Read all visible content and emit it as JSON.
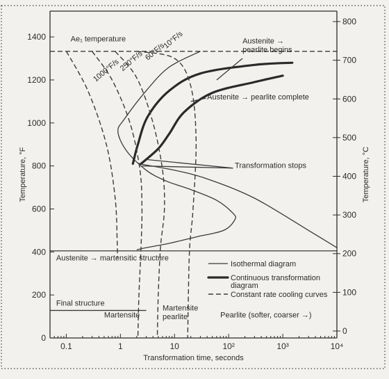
{
  "chart_data": {
    "type": "line",
    "xlabel": "Transformation time, seconds",
    "ylabel_left": "Temperature, °F",
    "ylabel_right": "Temperature, °C",
    "x_scale": "log",
    "xlim": [
      0.05,
      10000
    ],
    "ylim_left": [
      0,
      1520
    ],
    "ylim_right": [
      -18,
      827
    ],
    "x_ticks": [
      {
        "value": 0.1,
        "label": "0.1"
      },
      {
        "value": 1,
        "label": "1"
      },
      {
        "value": 10,
        "label": "10"
      },
      {
        "value": 100,
        "label": "10²"
      },
      {
        "value": 1000,
        "label": "10³"
      },
      {
        "value": 10000,
        "label": "10⁴"
      }
    ],
    "y_ticks_left": [
      0,
      200,
      400,
      600,
      800,
      1000,
      1200,
      1400
    ],
    "y_ticks_right": [
      0,
      100,
      200,
      300,
      400,
      500,
      600,
      700,
      800
    ],
    "reference_lines": [
      {
        "label": "Ae₁ temperature",
        "y": 1333
      },
      {
        "label": "Austenite → martensitic structure",
        "y": 405
      }
    ],
    "series": [
      {
        "name": "Isothermal diagram",
        "style": "thin",
        "points": [
          [
            30,
            1333
          ],
          [
            8,
            1260
          ],
          [
            3,
            1150
          ],
          [
            1.2,
            1020
          ],
          [
            0.9,
            960
          ],
          [
            1.3,
            870
          ],
          [
            3,
            780
          ],
          [
            7,
            730
          ],
          [
            20,
            690
          ],
          [
            60,
            640
          ],
          [
            120,
            580
          ],
          [
            130,
            550
          ],
          [
            80,
            500
          ],
          [
            25,
            470
          ],
          [
            8,
            440
          ],
          [
            3,
            420
          ],
          [
            2,
            410
          ]
        ]
      },
      {
        "name": "Isothermal diagram",
        "style": "thin",
        "points": [
          [
            2.2,
            810
          ],
          [
            10,
            780
          ],
          [
            40,
            740
          ],
          [
            300,
            650
          ],
          [
            3000,
            500
          ],
          [
            10000,
            420
          ]
        ]
      },
      {
        "name": "Continuous transformation diagram",
        "style": "thick",
        "points": [
          [
            1.7,
            810
          ],
          [
            2.1,
            900
          ],
          [
            3.2,
            1030
          ],
          [
            8,
            1150
          ],
          [
            30,
            1230
          ],
          [
            300,
            1270
          ],
          [
            1500,
            1280
          ]
        ]
      },
      {
        "name": "Continuous transformation diagram",
        "style": "thick",
        "points": [
          [
            2.4,
            810
          ],
          [
            5,
            880
          ],
          [
            8,
            950
          ],
          [
            15,
            1050
          ],
          [
            50,
            1140
          ],
          [
            300,
            1190
          ],
          [
            1000,
            1220
          ]
        ]
      },
      {
        "name": "Constant rate cooling curves",
        "style": "dashed",
        "label": "10°F/s",
        "points": [
          [
            2,
            1333
          ],
          [
            10,
            1300
          ],
          [
            20,
            1170
          ],
          [
            25,
            920
          ],
          [
            22,
            600
          ],
          [
            19,
            420
          ],
          [
            18,
            200
          ],
          [
            17.5,
            0
          ]
        ]
      },
      {
        "name": "Constant rate cooling curves",
        "style": "dashed",
        "label": "60°F/s",
        "points": [
          [
            0.8,
            1333
          ],
          [
            2,
            1210
          ],
          [
            4,
            1000
          ],
          [
            6,
            780
          ],
          [
            6.5,
            600
          ],
          [
            5.5,
            420
          ],
          [
            5,
            200
          ],
          [
            4.8,
            0
          ]
        ]
      },
      {
        "name": "Constant rate cooling curves",
        "style": "dashed",
        "label": "250°F/s",
        "points": [
          [
            0.3,
            1333
          ],
          [
            0.7,
            1200
          ],
          [
            1.5,
            1000
          ],
          [
            2.3,
            780
          ],
          [
            2.5,
            600
          ],
          [
            2.4,
            420
          ],
          [
            2.2,
            200
          ],
          [
            2.1,
            0
          ]
        ]
      },
      {
        "name": "Constant rate cooling curves",
        "style": "dashed",
        "label": "1000°F/s",
        "points": [
          [
            0.1,
            1333
          ],
          [
            0.25,
            1150
          ],
          [
            0.55,
            900
          ],
          [
            0.8,
            650
          ],
          [
            0.87,
            450
          ],
          [
            0.88,
            380
          ],
          [
            0.88,
            380
          ]
        ]
      }
    ],
    "annotations": [
      {
        "text": "Ae₁ temperature",
        "x": 0.12,
        "y": 1380
      },
      {
        "text": "10°F/s",
        "x": 7,
        "y": 1345
      },
      {
        "text": "60°F/s",
        "x": 3.2,
        "y": 1290
      },
      {
        "text": "250°F/s",
        "x": 1.1,
        "y": 1240
      },
      {
        "text": "1000°F/s",
        "x": 0.35,
        "y": 1190
      },
      {
        "text": "Austenite →",
        "x": 180,
        "y": 1370
      },
      {
        "text": "pearlite begins",
        "x": 180,
        "y": 1330
      },
      {
        "text": "Austenite → pearlite complete",
        "x": 40,
        "y": 1110
      },
      {
        "text": "Transformation stops",
        "x": 130,
        "y": 790
      },
      {
        "text": "Austenite → martensitic structure",
        "x": 0.065,
        "y": 360
      },
      {
        "text": "Final structure",
        "x": 0.065,
        "y": 150
      },
      {
        "text": "Martensite",
        "x": 0.5,
        "y": 95
      },
      {
        "text": "Martensite",
        "x": 6,
        "y": 128
      },
      {
        "text": "pearlite",
        "x": 6,
        "y": 88
      },
      {
        "text": "Pearlite (softer, coarser →)",
        "x": 70,
        "y": 95
      }
    ],
    "legend": {
      "position": "bottom-right",
      "entries": [
        {
          "label": "Isothermal diagram",
          "style": "thin"
        },
        {
          "label": "Continuous transformation",
          "style": "thick",
          "label2": "diagram"
        },
        {
          "label": "Constant rate cooling curves",
          "style": "dashed"
        }
      ]
    }
  }
}
